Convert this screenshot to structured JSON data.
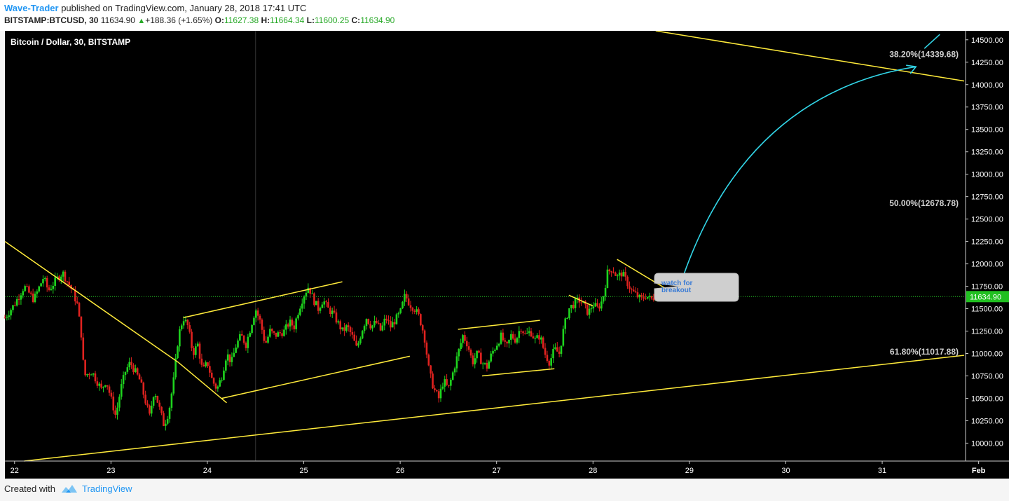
{
  "header": {
    "author": "Wave-Trader",
    "published": "published on TradingView.com, January 28, 2018 17:41 UTC",
    "symbol": "BITSTAMP:BTCUSD, 30",
    "last": "11634.90",
    "change": "+188.36 (+1.65%)",
    "o_label": "O:",
    "o": "11627.38",
    "h_label": "H:",
    "h": "11664.34",
    "l_label": "L:",
    "l": "11600.25",
    "c_label": "C:",
    "c": "11634.90"
  },
  "chart_data": {
    "type": "candlestick",
    "title": "Bitcoin / Dollar, 30, BITSTAMP",
    "x_ticks": [
      "22",
      "23",
      "24",
      "25",
      "26",
      "27",
      "28",
      "29",
      "30",
      "31",
      "Feb"
    ],
    "y_ticks": [
      "14500.00",
      "14250.00",
      "14000.00",
      "13750.00",
      "13500.00",
      "13250.00",
      "13000.00",
      "12750.00",
      "12500.00",
      "12250.00",
      "12000.00",
      "11750.00",
      "11500.00",
      "11250.00",
      "11000.00",
      "10750.00",
      "10500.00",
      "10250.00",
      "10000.00"
    ],
    "ylim": [
      9800,
      14600
    ],
    "xlim": [
      21.9,
      31.85
    ],
    "last_price": 11634.9,
    "last_price_label": "11634.90",
    "price_path": [
      [
        21.9,
        11400
      ],
      [
        22.0,
        11550
      ],
      [
        22.1,
        11750
      ],
      [
        22.2,
        11600
      ],
      [
        22.3,
        11850
      ],
      [
        22.35,
        11700
      ],
      [
        22.45,
        11850
      ],
      [
        22.5,
        11900
      ],
      [
        22.55,
        11800
      ],
      [
        22.6,
        11700
      ],
      [
        22.65,
        11550
      ],
      [
        22.7,
        11150
      ],
      [
        22.72,
        10750
      ],
      [
        22.8,
        10800
      ],
      [
        22.9,
        10600
      ],
      [
        22.95,
        10700
      ],
      [
        23.0,
        10500
      ],
      [
        23.05,
        10300
      ],
      [
        23.1,
        10600
      ],
      [
        23.15,
        10800
      ],
      [
        23.2,
        10900
      ],
      [
        23.25,
        10800
      ],
      [
        23.3,
        10700
      ],
      [
        23.35,
        10500
      ],
      [
        23.4,
        10300
      ],
      [
        23.45,
        10600
      ],
      [
        23.5,
        10400
      ],
      [
        23.55,
        10200
      ],
      [
        23.6,
        10350
      ],
      [
        23.65,
        10700
      ],
      [
        23.7,
        11200
      ],
      [
        23.75,
        11400
      ],
      [
        23.8,
        11300
      ],
      [
        23.85,
        11000
      ],
      [
        23.9,
        11100
      ],
      [
        23.95,
        10800
      ],
      [
        24.0,
        10900
      ],
      [
        24.05,
        10700
      ],
      [
        24.1,
        10600
      ],
      [
        24.15,
        10750
      ],
      [
        24.2,
        11000
      ],
      [
        24.25,
        10900
      ],
      [
        24.3,
        11100
      ],
      [
        24.35,
        11200
      ],
      [
        24.4,
        11100
      ],
      [
        24.45,
        11300
      ],
      [
        24.5,
        11500
      ],
      [
        24.55,
        11350
      ],
      [
        24.6,
        11100
      ],
      [
        24.65,
        11250
      ],
      [
        24.7,
        11200
      ],
      [
        24.8,
        11250
      ],
      [
        24.85,
        11350
      ],
      [
        24.9,
        11300
      ],
      [
        24.95,
        11500
      ],
      [
        25.0,
        11650
      ],
      [
        25.05,
        11750
      ],
      [
        25.1,
        11600
      ],
      [
        25.15,
        11500
      ],
      [
        25.2,
        11600
      ],
      [
        25.25,
        11500
      ],
      [
        25.3,
        11450
      ],
      [
        25.35,
        11350
      ],
      [
        25.4,
        11250
      ],
      [
        25.45,
        11300
      ],
      [
        25.5,
        11200
      ],
      [
        25.55,
        11050
      ],
      [
        25.6,
        11250
      ],
      [
        25.65,
        11400
      ],
      [
        25.7,
        11300
      ],
      [
        25.75,
        11350
      ],
      [
        25.8,
        11250
      ],
      [
        25.85,
        11400
      ],
      [
        25.9,
        11300
      ],
      [
        26.0,
        11450
      ],
      [
        26.05,
        11650
      ],
      [
        26.1,
        11550
      ],
      [
        26.15,
        11500
      ],
      [
        26.2,
        11400
      ],
      [
        26.25,
        11200
      ],
      [
        26.3,
        10800
      ],
      [
        26.35,
        10600
      ],
      [
        26.4,
        10500
      ],
      [
        26.45,
        10700
      ],
      [
        26.5,
        10600
      ],
      [
        26.55,
        10800
      ],
      [
        26.6,
        11000
      ],
      [
        26.65,
        11200
      ],
      [
        26.7,
        11100
      ],
      [
        26.75,
        10900
      ],
      [
        26.8,
        11000
      ],
      [
        26.85,
        10900
      ],
      [
        26.9,
        10850
      ],
      [
        26.95,
        11000
      ],
      [
        27.0,
        11100
      ],
      [
        27.05,
        11200
      ],
      [
        27.1,
        11050
      ],
      [
        27.15,
        11200
      ],
      [
        27.2,
        11150
      ],
      [
        27.25,
        11300
      ],
      [
        27.3,
        11200
      ],
      [
        27.35,
        11250
      ],
      [
        27.4,
        11150
      ],
      [
        27.45,
        11200
      ],
      [
        27.5,
        11000
      ],
      [
        27.55,
        10900
      ],
      [
        27.6,
        11050
      ],
      [
        27.65,
        11000
      ],
      [
        27.7,
        11300
      ],
      [
        27.75,
        11500
      ],
      [
        27.8,
        11550
      ],
      [
        27.85,
        11600
      ],
      [
        27.9,
        11550
      ],
      [
        27.95,
        11450
      ],
      [
        28.0,
        11550
      ],
      [
        28.05,
        11500
      ],
      [
        28.1,
        11600
      ],
      [
        28.15,
        11900
      ],
      [
        28.2,
        11950
      ],
      [
        28.25,
        11850
      ],
      [
        28.3,
        11900
      ],
      [
        28.35,
        11800
      ],
      [
        28.4,
        11700
      ],
      [
        28.45,
        11650
      ],
      [
        28.5,
        11600
      ],
      [
        28.55,
        11650
      ],
      [
        28.6,
        11600
      ],
      [
        28.65,
        11640
      ],
      [
        28.7,
        11635
      ]
    ],
    "trendlines": [
      {
        "from": [
          21.9,
          12250
        ],
        "to": [
          23.7,
          10900
        ]
      },
      {
        "from": [
          23.7,
          10900
        ],
        "to": [
          24.2,
          10450
        ]
      },
      {
        "from": [
          23.75,
          11400
        ],
        "to": [
          25.4,
          11800
        ]
      },
      {
        "from": [
          24.15,
          10500
        ],
        "to": [
          26.1,
          10970
        ]
      },
      {
        "from": [
          26.6,
          11270
        ],
        "to": [
          27.45,
          11370
        ]
      },
      {
        "from": [
          26.85,
          10750
        ],
        "to": [
          27.6,
          10830
        ]
      },
      {
        "from": [
          27.75,
          11650
        ],
        "to": [
          28.0,
          11530
        ]
      },
      {
        "from": [
          28.25,
          12050
        ],
        "to": [
          28.9,
          11630
        ]
      },
      {
        "from": [
          22.1,
          9800
        ],
        "to": [
          31.85,
          10980
        ]
      },
      {
        "from": [
          28.65,
          14600
        ],
        "to": [
          31.85,
          14040
        ]
      }
    ],
    "fib_levels": [
      {
        "label": "38.20%(14339.68)",
        "value": 14339.68
      },
      {
        "label": "50.00%(12678.78)",
        "value": 12678.78
      },
      {
        "label": "61.80%(11017.88)",
        "value": 11017.88
      }
    ],
    "projection_arrow": {
      "from": [
        28.9,
        11750
      ],
      "to": [
        31.35,
        14200
      ],
      "color": "#32d6e8"
    },
    "callout": "watch for breakout",
    "colors": {
      "up": "#1ed41e",
      "down": "#e0221f",
      "trendline": "#ffeb3b",
      "price_line": "#26c626",
      "callout_text": "#3a7bd5",
      "axis_text": "#ffffff"
    }
  },
  "footer": {
    "created": "Created with",
    "brand": "TradingView"
  }
}
